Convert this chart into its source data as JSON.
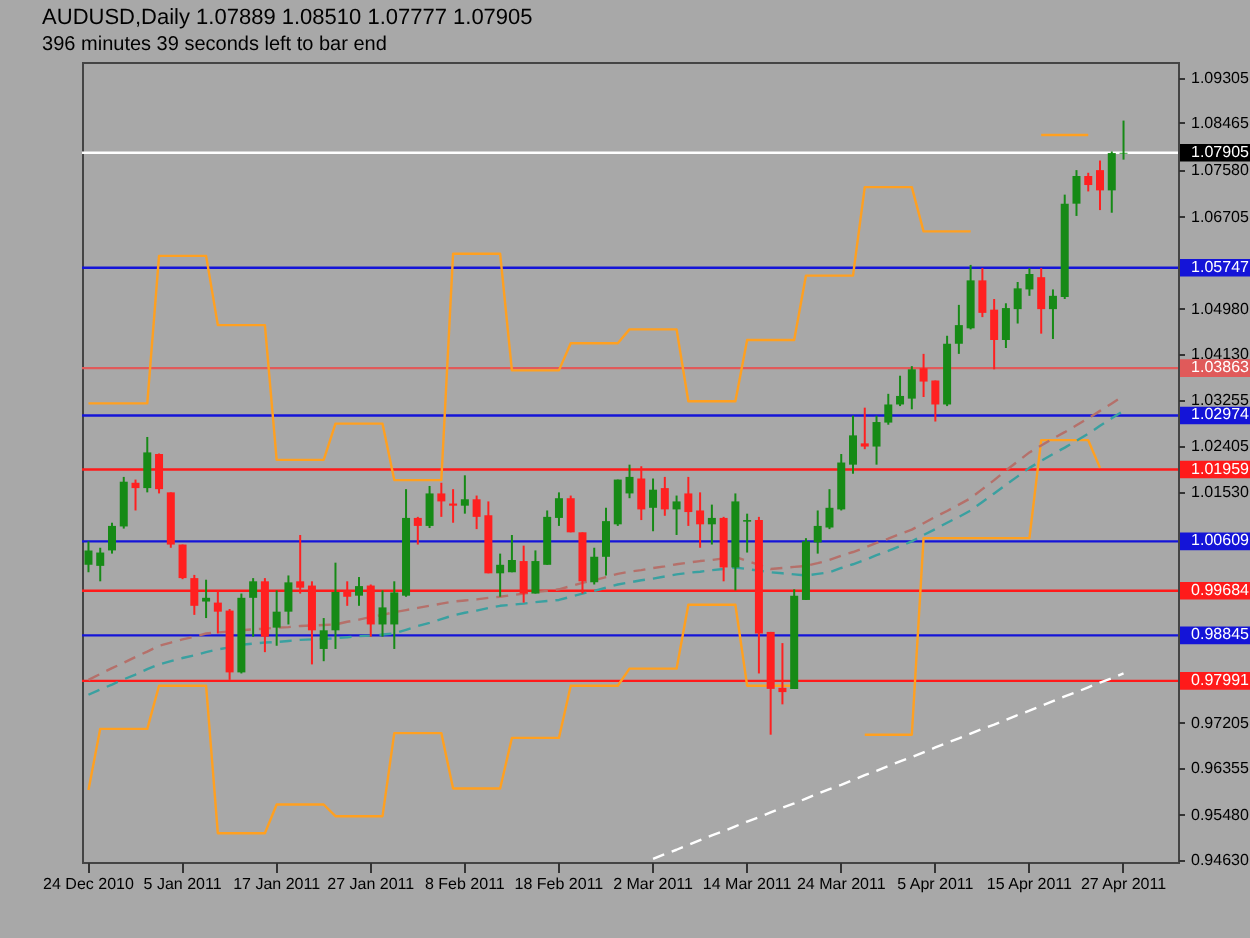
{
  "chart_data": {
    "type": "candlestick",
    "title": "AUDUSD,Daily  1.07889 1.08510 1.07777 1.07905",
    "subtitle": "396 minutes 39 seconds left to bar end",
    "categories": [
      "24 Dec 2010",
      null,
      null,
      null,
      null,
      null,
      null,
      null,
      "5 Jan 2011",
      null,
      null,
      null,
      null,
      null,
      null,
      null,
      "17 Jan 2011",
      null,
      null,
      null,
      null,
      null,
      null,
      null,
      "27 Jan 2011",
      null,
      null,
      null,
      null,
      null,
      null,
      null,
      "8 Feb 2011",
      null,
      null,
      null,
      null,
      null,
      null,
      null,
      "18 Feb 2011",
      null,
      null,
      null,
      null,
      null,
      null,
      null,
      "2 Mar 2011",
      null,
      null,
      null,
      null,
      null,
      null,
      null,
      "14 Mar 2011",
      null,
      null,
      null,
      null,
      null,
      null,
      null,
      "24 Mar 2011",
      null,
      null,
      null,
      null,
      null,
      null,
      null,
      "5 Apr 2011",
      null,
      null,
      null,
      null,
      null,
      null,
      null,
      "15 Apr 2011",
      null,
      null,
      null,
      null,
      null,
      null,
      null,
      "27 Apr 2011"
    ],
    "ohlc": [
      [
        1.0017,
        1.0061,
        1.0003,
        1.0044
      ],
      [
        1.0015,
        1.0049,
        0.9986,
        1.004
      ],
      [
        1.0044,
        1.0096,
        1.0038,
        1.009
      ],
      [
        1.0089,
        1.0182,
        1.0085,
        1.0173
      ],
      [
        1.0171,
        1.0177,
        1.0119,
        1.0161
      ],
      [
        1.0161,
        1.0257,
        1.0153,
        1.0228
      ],
      [
        1.0225,
        1.0226,
        1.0151,
        1.0159
      ],
      [
        1.0153,
        1.0153,
        1.0049,
        1.0055
      ],
      [
        1.0055,
        1.0055,
        0.999,
        0.9992
      ],
      [
        0.9992,
        0.9998,
        0.9923,
        0.994
      ],
      [
        0.9948,
        0.9989,
        0.9917,
        0.9955
      ],
      [
        0.9946,
        0.9969,
        0.9888,
        0.9929
      ],
      [
        0.9931,
        0.9934,
        0.9801,
        0.9815
      ],
      [
        0.9815,
        0.9963,
        0.9813,
        0.9955
      ],
      [
        0.9955,
        0.9992,
        0.9882,
        0.9986
      ],
      [
        0.9986,
        0.9992,
        0.9853,
        0.9882
      ],
      [
        0.9899,
        0.9969,
        0.9865,
        0.9929
      ],
      [
        0.9929,
        0.9997,
        0.9905,
        0.9984
      ],
      [
        0.9986,
        1.0073,
        0.9963,
        0.9974
      ],
      [
        0.9978,
        0.9986,
        0.983,
        0.9894
      ],
      [
        0.9859,
        0.9917,
        0.9836,
        0.9894
      ],
      [
        0.9894,
        1.0021,
        0.9859,
        0.9966
      ],
      [
        0.9969,
        0.9986,
        0.994,
        0.9957
      ],
      [
        0.9959,
        0.9994,
        0.994,
        0.9977
      ],
      [
        0.9978,
        0.998,
        0.9882,
        0.9905
      ],
      [
        0.9905,
        0.9969,
        0.9882,
        0.9937
      ],
      [
        0.9905,
        0.9986,
        0.9859,
        0.9965
      ],
      [
        0.9959,
        1.0159,
        0.9957,
        1.0105
      ],
      [
        1.0105,
        1.0107,
        1.0055,
        1.009
      ],
      [
        1.009,
        1.0165,
        1.0086,
        1.0151
      ],
      [
        1.0151,
        1.0171,
        1.0107,
        1.0136
      ],
      [
        1.0132,
        1.0159,
        1.0096,
        1.0128
      ],
      [
        1.0128,
        1.0185,
        1.0113,
        1.014
      ],
      [
        1.014,
        1.0147,
        1.0084,
        1.0107
      ],
      [
        1.011,
        1.0136,
        1.0001,
        1.0001
      ],
      [
        1.0001,
        1.0038,
        0.9957,
        1.0017
      ],
      [
        1.0003,
        1.0073,
        1.0003,
        1.0026
      ],
      [
        1.0024,
        1.0053,
        0.9946,
        0.9963
      ],
      [
        0.9963,
        1.0044,
        0.9963,
        1.0024
      ],
      [
        1.0017,
        1.0119,
        1.0017,
        1.0107
      ],
      [
        1.0105,
        1.0153,
        1.009,
        1.0142
      ],
      [
        1.0142,
        1.0147,
        1.0078,
        1.0078
      ],
      [
        1.0078,
        1.0078,
        0.9963,
        0.9986
      ],
      [
        0.9984,
        1.0049,
        0.998,
        1.0032
      ],
      [
        1.0032,
        1.0124,
        0.9997,
        1.0099
      ],
      [
        1.0093,
        1.0177,
        1.009,
        1.0177
      ],
      [
        1.0151,
        1.0205,
        1.0142,
        1.0182
      ],
      [
        1.0179,
        1.0202,
        1.0101,
        1.0121
      ],
      [
        1.0124,
        1.0179,
        1.008,
        1.0158
      ],
      [
        1.0161,
        1.0182,
        1.0109,
        1.0121
      ],
      [
        1.0121,
        1.0147,
        1.0073,
        1.0136
      ],
      [
        1.0151,
        1.0182,
        1.009,
        1.0116
      ],
      [
        1.0119,
        1.0153,
        1.0049,
        1.0093
      ],
      [
        1.0093,
        1.013,
        1.0055,
        1.0105
      ],
      [
        1.0105,
        1.0107,
        0.9986,
        1.0012
      ],
      [
        1.0012,
        1.0151,
        0.9969,
        1.0136
      ],
      [
        1.0098,
        1.0113,
        1.004,
        1.0101
      ],
      [
        1.0101,
        1.0107,
        0.9813,
        0.9888
      ],
      [
        0.9891,
        0.9891,
        0.9698,
        0.9784
      ],
      [
        0.9786,
        0.987,
        0.9755,
        0.9778
      ],
      [
        0.9784,
        0.9971,
        0.9784,
        0.9959
      ],
      [
        0.9951,
        1.0067,
        0.9951,
        1.0061
      ],
      [
        1.0059,
        1.0119,
        1.0038,
        1.009
      ],
      [
        1.0087,
        1.0159,
        1.0084,
        1.0124
      ],
      [
        1.0121,
        1.0225,
        1.0119,
        1.0209
      ],
      [
        1.0205,
        1.0297,
        1.0188,
        1.026
      ],
      [
        1.0245,
        1.0312,
        1.0234,
        1.0239
      ],
      [
        1.0239,
        1.0297,
        1.0205,
        1.0285
      ],
      [
        1.0284,
        1.0338,
        1.028,
        1.0318
      ],
      [
        1.0318,
        1.0372,
        1.0315,
        1.0334
      ],
      [
        1.0329,
        1.039,
        1.0309,
        1.0384
      ],
      [
        1.0386,
        1.0413,
        1.0332,
        1.0361
      ],
      [
        1.0363,
        1.0363,
        1.0286,
        1.0318
      ],
      [
        1.0318,
        1.0447,
        1.0315,
        1.0432
      ],
      [
        1.0432,
        1.0505,
        1.0413,
        1.0467
      ],
      [
        1.0461,
        1.058,
        1.0459,
        1.0551
      ],
      [
        1.0551,
        1.0574,
        1.0482,
        1.049
      ],
      [
        1.0496,
        1.0516,
        1.0384,
        1.0439
      ],
      [
        1.0439,
        1.0508,
        1.0424,
        1.0499
      ],
      [
        1.0497,
        1.0548,
        1.047,
        1.0536
      ],
      [
        1.0534,
        1.0574,
        1.0522,
        1.0563
      ],
      [
        1.0557,
        1.0574,
        1.0451,
        1.0497
      ],
      [
        1.0497,
        1.0534,
        1.0441,
        1.0522
      ],
      [
        1.052,
        1.0712,
        1.0516,
        1.0695
      ],
      [
        1.0695,
        1.0758,
        1.0672,
        1.0747
      ],
      [
        1.0747,
        1.0753,
        1.0718,
        1.073
      ],
      [
        1.0758,
        1.0776,
        1.0683,
        1.072
      ],
      [
        1.072,
        1.0793,
        1.0678,
        1.079
      ],
      [
        1.07889,
        1.0851,
        1.07777,
        1.07905
      ]
    ],
    "series": [
      {
        "type": "line",
        "color": "#ffa020",
        "line_style": "solid",
        "values": [
          1.032,
          1.032,
          1.032,
          1.032,
          1.032,
          1.032,
          1.0597,
          1.0597,
          1.0597,
          1.0597,
          1.0597,
          1.0467,
          1.0467,
          1.0467,
          1.0467,
          1.0467,
          1.0214,
          1.0214,
          1.0214,
          1.0214,
          1.0214,
          1.0282,
          1.0282,
          1.0282,
          1.0282,
          1.0282,
          1.0176,
          1.0176,
          1.0176,
          1.0176,
          1.0176,
          1.0601,
          1.0601,
          1.0601,
          1.0601,
          1.0601,
          1.0382,
          1.0382,
          1.0382,
          1.0382,
          1.0382,
          1.0433,
          1.0433,
          1.0433,
          1.0433,
          1.0433,
          1.0459,
          1.0459,
          1.0459,
          1.0459,
          1.0459,
          1.0324,
          1.0324,
          1.0324,
          1.0324,
          1.0324,
          1.0439,
          1.0439,
          1.0439,
          1.0439,
          1.0439,
          1.056,
          1.056,
          1.056,
          1.056,
          1.056,
          1.0726,
          1.0726,
          1.0726,
          1.0726,
          1.0726,
          1.0643,
          1.0643,
          1.0643,
          1.0643,
          1.0643,
          null,
          null,
          null,
          null,
          null,
          1.0824,
          1.0824,
          1.0824,
          1.0824,
          1.0824,
          null,
          null,
          null
        ]
      },
      {
        "type": "line",
        "color": "#ffa020",
        "line_style": "solid",
        "values": [
          0.9594,
          0.9709,
          0.9709,
          0.9709,
          0.9709,
          0.9709,
          0.979,
          0.979,
          0.979,
          0.979,
          0.979,
          0.9513,
          0.9513,
          0.9513,
          0.9513,
          0.9513,
          0.9567,
          0.9567,
          0.9567,
          0.9567,
          0.9567,
          0.9545,
          0.9545,
          0.9545,
          0.9545,
          0.9545,
          0.9701,
          0.9701,
          0.9701,
          0.9701,
          0.9701,
          0.9597,
          0.9597,
          0.9597,
          0.9597,
          0.9597,
          0.9692,
          0.9692,
          0.9692,
          0.9692,
          0.9692,
          0.979,
          0.979,
          0.979,
          0.979,
          0.979,
          0.9822,
          0.9822,
          0.9822,
          0.9822,
          0.9822,
          0.9942,
          0.9942,
          0.9942,
          0.9942,
          0.9942,
          0.979,
          0.979,
          0.979,
          0.979,
          0.979,
          null,
          null,
          null,
          null,
          null,
          0.9698,
          0.9698,
          0.9698,
          0.9698,
          0.9698,
          1.0067,
          1.0067,
          1.0067,
          1.0067,
          1.0067,
          1.0067,
          1.0067,
          1.0067,
          1.0067,
          1.0067,
          1.0251,
          1.0251,
          1.0251,
          1.0251,
          1.0251,
          1.0199,
          null,
          null
        ]
      },
      {
        "type": "line",
        "color": "#b5706a",
        "line_style": "dashed",
        "values": [
          0.9801,
          0.9812,
          0.9823,
          0.9833,
          0.9844,
          0.9854,
          0.9865,
          0.9871,
          0.9877,
          0.9882,
          0.9888,
          0.989,
          0.9892,
          0.9894,
          0.9896,
          0.9897,
          0.9899,
          0.99,
          0.9902,
          0.9903,
          0.9904,
          0.9905,
          0.991,
          0.9914,
          0.9919,
          0.9923,
          0.9928,
          0.9932,
          0.9936,
          0.994,
          0.9944,
          0.9948,
          0.995,
          0.9952,
          0.9955,
          0.9957,
          0.996,
          0.9963,
          0.9966,
          0.9968,
          0.9971,
          0.9977,
          0.9983,
          0.9988,
          0.9994,
          1.0,
          1.0004,
          1.0007,
          1.0011,
          1.0014,
          1.0018,
          1.0021,
          1.0024,
          1.0026,
          1.0029,
          1.0032,
          1.0024,
          1.0017,
          1.0009,
          1.0011,
          1.0013,
          1.0015,
          1.002,
          1.0026,
          1.0034,
          1.0041,
          1.0049,
          1.0058,
          1.0066,
          1.0075,
          1.0083,
          1.0095,
          1.0107,
          1.0118,
          1.013,
          1.0142,
          1.0159,
          1.0176,
          1.0194,
          1.0211,
          1.0228,
          1.0241,
          1.0254,
          1.0266,
          1.0279,
          1.0292,
          1.0306,
          1.032,
          1.0334
        ]
      },
      {
        "type": "line",
        "color": "#3aa0a0",
        "line_style": "dashed",
        "values": [
          0.9773,
          0.9783,
          0.9792,
          0.9802,
          0.9811,
          0.9821,
          0.983,
          0.9836,
          0.9842,
          0.9847,
          0.9853,
          0.9858,
          0.9862,
          0.9867,
          0.9869,
          0.9871,
          0.9872,
          0.9874,
          0.9876,
          0.9877,
          0.9878,
          0.9879,
          0.9881,
          0.9883,
          0.9884,
          0.9886,
          0.9888,
          0.9895,
          0.9902,
          0.9908,
          0.9915,
          0.9922,
          0.9927,
          0.9931,
          0.9936,
          0.994,
          0.9942,
          0.9944,
          0.9947,
          0.9949,
          0.9951,
          0.9957,
          0.9963,
          0.9968,
          0.9974,
          0.998,
          0.9984,
          0.9988,
          0.9991,
          0.9995,
          0.9999,
          1.0002,
          1.0004,
          1.0007,
          1.0009,
          1.0012,
          1.0009,
          1.0006,
          1.0003,
          1.0001,
          0.9999,
          0.9997,
          1.0,
          1.0003,
          1.0011,
          1.0018,
          1.0026,
          1.0035,
          1.0043,
          1.0052,
          1.0061,
          1.0073,
          1.0084,
          1.0096,
          1.0107,
          1.0119,
          1.0135,
          1.0151,
          1.0167,
          1.0183,
          1.0199,
          1.0212,
          1.0225,
          1.0237,
          1.025,
          1.0263,
          1.0278,
          1.0292,
          1.0306
        ]
      },
      {
        "type": "line",
        "color": "#ffffff",
        "line_style": "dashed",
        "values": [
          null,
          null,
          null,
          null,
          null,
          null,
          null,
          null,
          null,
          null,
          null,
          null,
          null,
          null,
          null,
          null,
          null,
          null,
          null,
          null,
          null,
          null,
          null,
          null,
          null,
          null,
          null,
          null,
          null,
          null,
          null,
          null,
          null,
          null,
          null,
          null,
          null,
          null,
          null,
          null,
          null,
          null,
          null,
          null,
          null,
          null,
          null,
          null,
          0.9465,
          0.9474,
          0.9482,
          0.9491,
          0.95,
          0.9509,
          0.9517,
          0.9526,
          0.9535,
          0.9543,
          0.9552,
          0.9561,
          0.9569,
          0.9578,
          0.9587,
          0.9596,
          0.9604,
          0.9613,
          0.9622,
          0.963,
          0.9639,
          0.9648,
          0.9656,
          0.9665,
          0.9674,
          0.9683,
          0.9691,
          0.97,
          0.9709,
          0.9717,
          0.9726,
          0.9735,
          0.9743,
          0.9752,
          0.9761,
          0.977,
          0.9778,
          0.9787,
          0.9796,
          0.9804,
          0.9813
        ]
      }
    ],
    "ref_lines": [
      {
        "axis": "y",
        "value": 1.07905,
        "label": "1.07905",
        "color": "#ffffff"
      },
      {
        "axis": "y",
        "value": 1.05747,
        "label": "1.05747",
        "color": "#1414d8"
      },
      {
        "axis": "y",
        "value": 1.03863,
        "label": "1.03863",
        "color": "#e05a5a"
      },
      {
        "axis": "y",
        "value": 1.02974,
        "label": "1.02974",
        "color": "#1414d8"
      },
      {
        "axis": "y",
        "value": 1.01959,
        "label": "1.01959",
        "color": "#ff1a1a"
      },
      {
        "axis": "y",
        "value": 1.00609,
        "label": "1.00609",
        "color": "#1414d8"
      },
      {
        "axis": "y",
        "value": 0.99684,
        "label": "0.99684",
        "color": "#ff1a1a"
      },
      {
        "axis": "y",
        "value": 0.98845,
        "label": "0.98845",
        "color": "#1414d8"
      },
      {
        "axis": "y",
        "value": 0.97991,
        "label": "0.97991",
        "color": "#ff1a1a"
      }
    ],
    "ylim": [
      0.9459,
      1.0961
    ],
    "yticks": [
      1.09305,
      1.08465,
      {
        "value": 1.0758,
        "label": "1.07580"
      },
      1.06705,
      {
        "value": 1.0498,
        "label": "1.04980"
      },
      {
        "value": 1.0413,
        "label": "1.04130"
      },
      1.03255,
      1.02405,
      {
        "value": 1.0153,
        "label": "1.01530"
      },
      0.97205,
      0.96355,
      {
        "value": 0.9548,
        "label": "0.95480"
      },
      {
        "value": 0.9463,
        "label": "0.94630"
      }
    ]
  }
}
